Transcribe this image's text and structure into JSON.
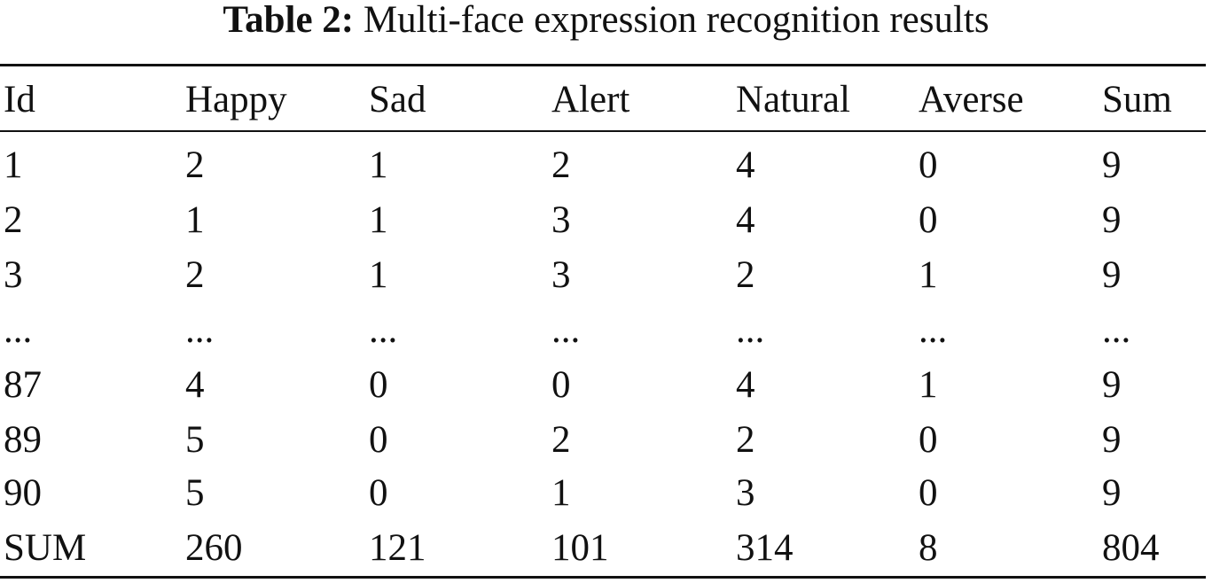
{
  "caption": {
    "label": "Table 2:",
    "title": "Multi-face expression recognition results"
  },
  "table": {
    "headers": [
      "Id",
      "Happy",
      "Sad",
      "Alert",
      "Natural",
      "Averse",
      "Sum"
    ],
    "rows": [
      [
        "1",
        "2",
        "1",
        "2",
        "4",
        "0",
        "9"
      ],
      [
        "2",
        "1",
        "1",
        "3",
        "4",
        "0",
        "9"
      ],
      [
        "3",
        "2",
        "1",
        "3",
        "2",
        "1",
        "9"
      ],
      [
        "...",
        "...",
        "...",
        "...",
        "...",
        "...",
        "..."
      ],
      [
        "87",
        "4",
        "0",
        "0",
        "4",
        "1",
        "9"
      ],
      [
        "89",
        "5",
        "0",
        "2",
        "2",
        "0",
        "9"
      ],
      [
        "90",
        "5",
        "0",
        "1",
        "3",
        "0",
        "9"
      ],
      [
        "SUM",
        "260",
        "121",
        "101",
        "314",
        "8",
        "804"
      ]
    ]
  }
}
